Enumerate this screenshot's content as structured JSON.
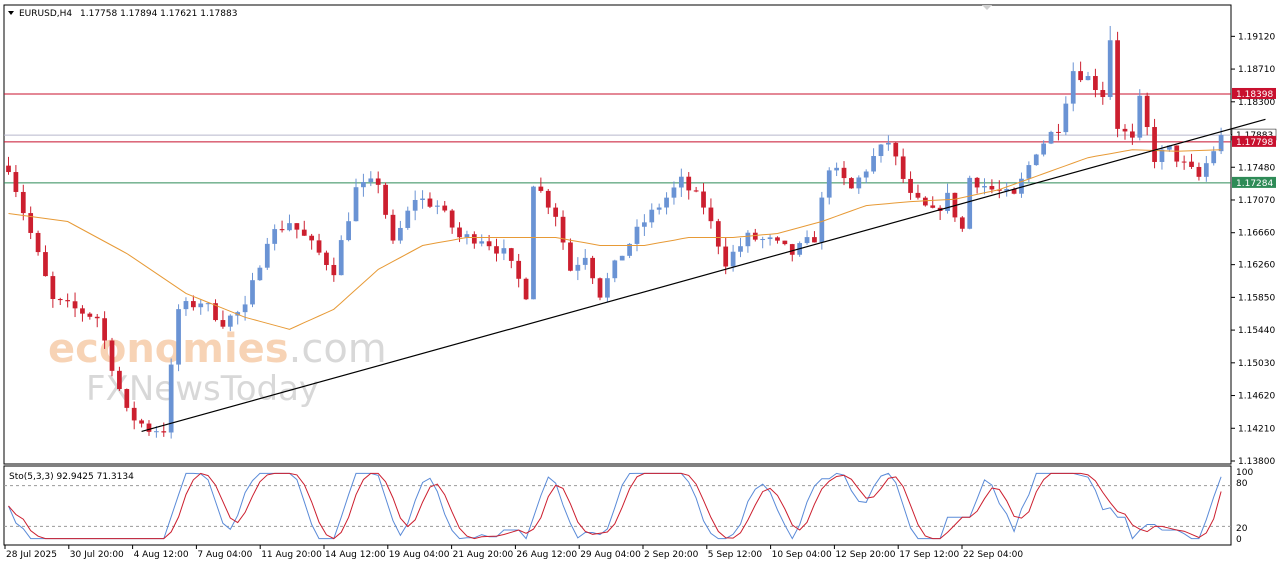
{
  "header": {
    "symbol": "EURUSD,H4",
    "ohlc": "1.17758 1.17894 1.17621 1.17883"
  },
  "watermark": {
    "line1_a": "economies",
    "line1_b": ".com",
    "line2": "FXNewsToday"
  },
  "indicator": {
    "label": "Sto(5,3,3) 92.9425 71.3134",
    "levels": [
      "100",
      "80",
      "20",
      "0"
    ]
  },
  "colors": {
    "bull": "#6a93d4",
    "bear": "#cc1f2f",
    "ma": "#e79a36",
    "resistance": "#c8102e",
    "support": "#2e8b57",
    "trendline": "#000000",
    "stoch_main": "#5b8bd8",
    "stoch_signal": "#cc1f2f"
  },
  "chart_data": {
    "type": "candlestick",
    "ylim": [
      1.138,
      1.1945
    ],
    "y_ticks": [
      "1.19120",
      "1.18710",
      "1.18300",
      "1.17890",
      "1.17480",
      "1.17070",
      "1.16660",
      "1.16260",
      "1.15850",
      "1.15440",
      "1.15030",
      "1.14620",
      "1.14210",
      "1.13800"
    ],
    "x_ticks": [
      "28 Jul 2025",
      "30 Jul 20:00",
      "4 Aug 12:00",
      "7 Aug 04:00",
      "11 Aug 20:00",
      "14 Aug 12:00",
      "19 Aug 04:00",
      "21 Aug 20:00",
      "26 Aug 12:00",
      "29 Aug 04:00",
      "2 Sep 20:00",
      "5 Sep 12:00",
      "10 Sep 04:00",
      "12 Sep 20:00",
      "17 Sep 12:00",
      "22 Sep 04:00"
    ],
    "price_path": [
      [
        0,
        1.175
      ],
      [
        6,
        1.158
      ],
      [
        12,
        1.156
      ],
      [
        16,
        1.144
      ],
      [
        19,
        1.142
      ],
      [
        21,
        1.142
      ],
      [
        23,
        1.157
      ],
      [
        26,
        1.158
      ],
      [
        29,
        1.1555
      ],
      [
        32,
        1.157
      ],
      [
        35,
        1.166
      ],
      [
        38,
        1.168
      ],
      [
        41,
        1.165
      ],
      [
        44,
        1.162
      ],
      [
        47,
        1.172
      ],
      [
        50,
        1.173
      ],
      [
        52,
        1.165
      ],
      [
        55,
        1.171
      ],
      [
        58,
        1.17
      ],
      [
        61,
        1.166
      ],
      [
        64,
        1.166
      ],
      [
        67,
        1.164
      ],
      [
        70,
        1.159
      ],
      [
        71,
        1.173
      ],
      [
        74,
        1.169
      ],
      [
        76,
        1.162
      ],
      [
        78,
        1.164
      ],
      [
        80,
        1.159
      ],
      [
        83,
        1.164
      ],
      [
        86,
        1.168
      ],
      [
        89,
        1.171
      ],
      [
        91,
        1.173
      ],
      [
        94,
        1.17
      ],
      [
        97,
        1.163
      ],
      [
        100,
        1.166
      ],
      [
        103,
        1.1655
      ],
      [
        106,
        1.164
      ],
      [
        109,
        1.166
      ],
      [
        111,
        1.175
      ],
      [
        114,
        1.172
      ],
      [
        117,
        1.176
      ],
      [
        119,
        1.178
      ],
      [
        122,
        1.171
      ],
      [
        125,
        1.169
      ],
      [
        127,
        1.171
      ],
      [
        129,
        1.167
      ],
      [
        130,
        1.1735
      ],
      [
        133,
        1.172
      ],
      [
        136,
        1.171
      ],
      [
        139,
        1.177
      ],
      [
        142,
        1.18
      ],
      [
        144,
        1.187
      ],
      [
        146,
        1.186
      ],
      [
        148,
        1.184
      ],
      [
        149,
        1.191
      ],
      [
        150,
        1.18
      ],
      [
        152,
        1.178
      ],
      [
        153,
        1.183
      ],
      [
        155,
        1.176
      ],
      [
        157,
        1.177
      ],
      [
        159,
        1.175
      ],
      [
        161,
        1.1735
      ],
      [
        163,
        1.177
      ],
      [
        164,
        1.1788
      ]
    ],
    "ma": {
      "name": "MA",
      "path": [
        [
          0,
          1.169
        ],
        [
          8,
          1.168
        ],
        [
          16,
          1.164
        ],
        [
          24,
          1.159
        ],
        [
          32,
          1.156
        ],
        [
          38,
          1.1545
        ],
        [
          44,
          1.157
        ],
        [
          50,
          1.162
        ],
        [
          56,
          1.165
        ],
        [
          62,
          1.166
        ],
        [
          68,
          1.166
        ],
        [
          74,
          1.166
        ],
        [
          80,
          1.165
        ],
        [
          86,
          1.165
        ],
        [
          92,
          1.166
        ],
        [
          98,
          1.166
        ],
        [
          104,
          1.1665
        ],
        [
          110,
          1.168
        ],
        [
          116,
          1.17
        ],
        [
          122,
          1.1705
        ],
        [
          128,
          1.1708
        ],
        [
          134,
          1.172
        ],
        [
          140,
          1.174
        ],
        [
          146,
          1.176
        ],
        [
          152,
          1.177
        ],
        [
          158,
          1.1768
        ],
        [
          164,
          1.177
        ]
      ]
    },
    "lines": [
      {
        "type": "resistance",
        "value": 1.18398,
        "label": "1.18398"
      },
      {
        "type": "level",
        "value": 1.17883,
        "label": "1.17883"
      },
      {
        "type": "resistance",
        "value": 1.17798,
        "label": "1.17798"
      },
      {
        "type": "support",
        "value": 1.17284,
        "label": "1.17284"
      }
    ],
    "trendline": {
      "from": [
        18,
        1.1417
      ],
      "to": [
        170,
        1.1808
      ]
    },
    "stochastic": {
      "main": 92.9425,
      "signal": 71.3134,
      "ylim": [
        0,
        100
      ],
      "levels": [
        80,
        20
      ]
    },
    "n_bars": 165
  }
}
